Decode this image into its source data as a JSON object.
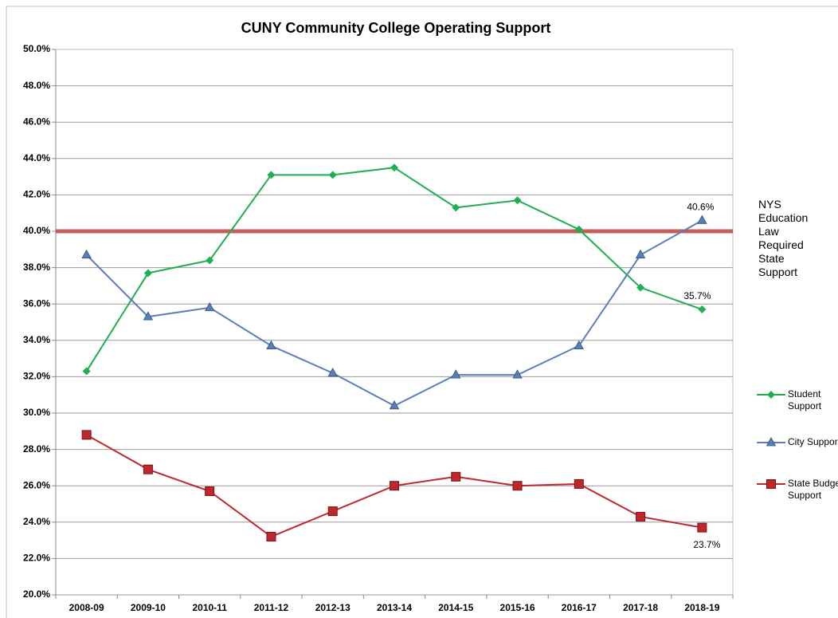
{
  "chart_data": {
    "type": "line",
    "title": "CUNY Community College Operating Support",
    "categories": [
      "2008-09",
      "2009-10",
      "2010-11",
      "2011-12",
      "2012-13",
      "2013-14",
      "2014-15",
      "2015-16",
      "2016-17",
      "2017-18",
      "2018-19"
    ],
    "series": [
      {
        "name": "Student Support",
        "color": "#1fae50",
        "marker": "diamond",
        "values": [
          32.3,
          37.7,
          38.4,
          43.1,
          43.1,
          43.5,
          41.3,
          41.7,
          40.1,
          36.9,
          35.7
        ],
        "value_labels": [
          null,
          null,
          null,
          null,
          null,
          null,
          null,
          null,
          null,
          null,
          "35.7%"
        ]
      },
      {
        "name": "City Support",
        "color": "#5a7fb8",
        "marker": "triangle",
        "values": [
          38.7,
          35.3,
          35.8,
          33.7,
          32.2,
          30.4,
          32.1,
          32.1,
          33.7,
          38.7,
          40.6
        ],
        "value_labels": [
          null,
          null,
          null,
          null,
          null,
          null,
          null,
          null,
          null,
          null,
          "40.6%"
        ]
      },
      {
        "name": "State Budget Support",
        "color": "#c0272d",
        "marker": "square",
        "values": [
          28.8,
          26.9,
          25.7,
          23.2,
          24.6,
          26.0,
          26.5,
          26.0,
          26.1,
          24.3,
          23.7
        ],
        "value_labels": [
          null,
          null,
          null,
          null,
          null,
          null,
          null,
          null,
          null,
          null,
          "23.7%"
        ]
      }
    ],
    "reference_line": {
      "value": 40,
      "label": "NYS Education Law Required State Support",
      "color": "#c0504d"
    },
    "ylim": [
      20,
      50
    ],
    "yticks": [
      {
        "value": 20,
        "label": "20.0%"
      },
      {
        "value": 22,
        "label": "22.0%"
      },
      {
        "value": 24,
        "label": "24.0%"
      },
      {
        "value": 26,
        "label": "26.0%"
      },
      {
        "value": 28,
        "label": "28.0%"
      },
      {
        "value": 30,
        "label": "30.0%"
      },
      {
        "value": 32,
        "label": "32.0%"
      },
      {
        "value": 34,
        "label": "34.0%"
      },
      {
        "value": 36,
        "label": "36.0%"
      },
      {
        "value": 38,
        "label": "38.0%"
      },
      {
        "value": 40,
        "label": "40.0%"
      },
      {
        "value": 42,
        "label": "42.0%"
      },
      {
        "value": 44,
        "label": "44.0%"
      },
      {
        "value": 46,
        "label": "46.0%"
      },
      {
        "value": 48,
        "label": "48.0%"
      },
      {
        "value": 50,
        "label": "50.0%"
      }
    ],
    "grid": true
  }
}
